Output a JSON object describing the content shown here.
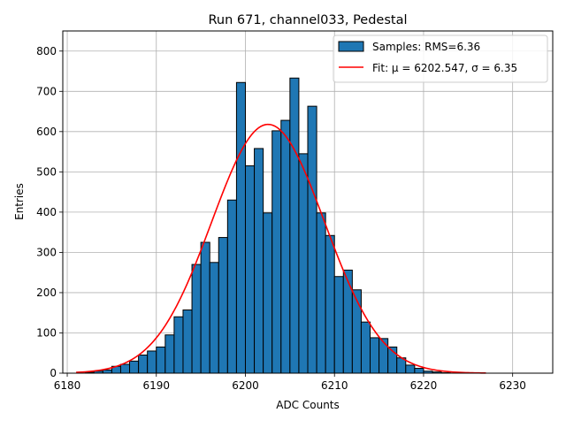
{
  "chart_data": {
    "type": "bar",
    "title": "Run 671, channel033, Pedestal",
    "xlabel": "ADC Counts",
    "ylabel": "Entries",
    "xlim": [
      6179.5,
      6234.5
    ],
    "ylim": [
      0,
      850
    ],
    "xticks": [
      6180,
      6190,
      6200,
      6210,
      6220,
      6230
    ],
    "yticks": [
      0,
      100,
      200,
      300,
      400,
      500,
      600,
      700,
      800
    ],
    "grid": true,
    "legend_position": "top-right",
    "bin_width": 1,
    "histogram": {
      "name": "Samples: RMS=6.36",
      "color": "#1f77b4",
      "edgecolor": "#000000",
      "bin_starts": [
        6182,
        6183,
        6184,
        6185,
        6186,
        6187,
        6188,
        6189,
        6190,
        6191,
        6192,
        6193,
        6194,
        6195,
        6196,
        6197,
        6198,
        6199,
        6200,
        6201,
        6202,
        6203,
        6204,
        6205,
        6206,
        6207,
        6208,
        6209,
        6210,
        6211,
        6212,
        6213,
        6214,
        6215,
        6216,
        6217,
        6218,
        6219,
        6220,
        6221,
        6222
      ],
      "counts": [
        2,
        5,
        8,
        17,
        22,
        30,
        45,
        55,
        65,
        95,
        140,
        157,
        270,
        325,
        275,
        337,
        430,
        722,
        515,
        558,
        398,
        602,
        628,
        733,
        545,
        663,
        398,
        342,
        240,
        256,
        207,
        127,
        88,
        86,
        65,
        38,
        20,
        12,
        5,
        3,
        1
      ]
    },
    "fit": {
      "name": "Fit: μ = 6202.547, σ = 6.35",
      "color": "#ff0000",
      "mu": 6202.547,
      "sigma": 6.35,
      "amplitude": 618,
      "x_range": [
        6181,
        6227
      ]
    }
  }
}
